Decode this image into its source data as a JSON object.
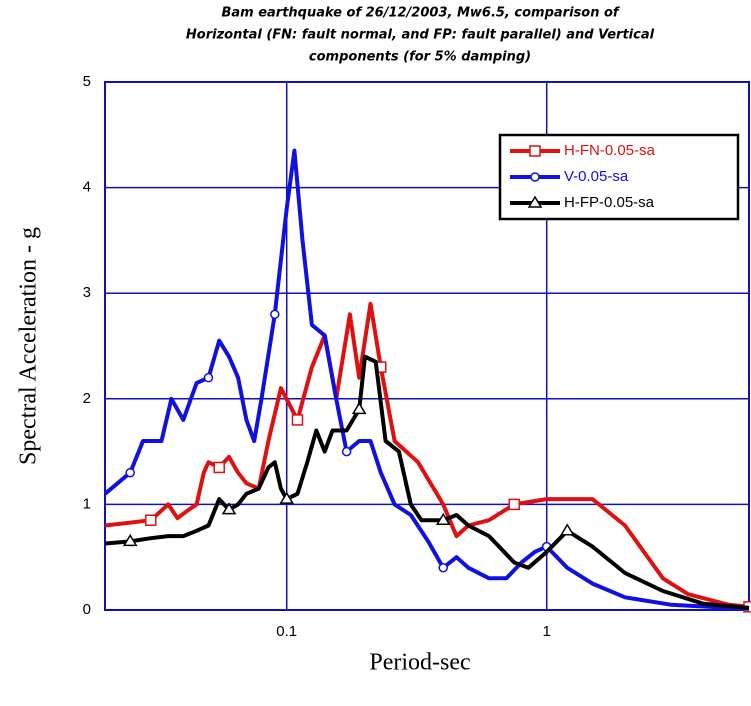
{
  "chart_data": {
    "type": "line",
    "title": [
      "Bam earthquake of 26/12/2003, Mw6.5, comparison of",
      "Horizontal (FN: fault normal, and FP: fault parallel) and Vertical",
      "components (for 5% damping)"
    ],
    "xlabel": "Period-sec",
    "ylabel": "Spectral Acceleration - g",
    "xscale": "log",
    "xlim": [
      0.02,
      6
    ],
    "ylim": [
      0,
      5
    ],
    "xticks": [
      0.1,
      1
    ],
    "yticks": [
      0,
      1,
      2,
      3,
      4,
      5
    ],
    "grid": true,
    "grid_color": "#1010c0",
    "legend": "upper right",
    "series": [
      {
        "name": "H-FN-0.05-sa",
        "color": "#e01010",
        "marker": "square",
        "x": [
          0.02,
          0.03,
          0.035,
          0.038,
          0.042,
          0.045,
          0.048,
          0.05,
          0.055,
          0.06,
          0.065,
          0.07,
          0.078,
          0.085,
          0.095,
          0.11,
          0.125,
          0.14,
          0.155,
          0.175,
          0.19,
          0.21,
          0.23,
          0.26,
          0.32,
          0.4,
          0.45,
          0.5,
          0.6,
          0.75,
          1.0,
          1.5,
          2.0,
          2.8,
          3.5,
          5,
          6
        ],
        "values": [
          0.8,
          0.85,
          1.0,
          0.87,
          0.95,
          1.0,
          1.3,
          1.4,
          1.35,
          1.45,
          1.3,
          1.2,
          1.15,
          1.6,
          2.1,
          1.8,
          2.3,
          2.6,
          2.0,
          2.8,
          2.2,
          2.9,
          2.3,
          1.6,
          1.4,
          1.0,
          0.7,
          0.8,
          0.85,
          1.0,
          1.05,
          1.05,
          0.8,
          0.3,
          0.15,
          0.05,
          0.03
        ]
      },
      {
        "name": "V-0.05-sa",
        "color": "#1010e0",
        "marker": "circle",
        "x": [
          0.02,
          0.025,
          0.028,
          0.03,
          0.033,
          0.036,
          0.04,
          0.045,
          0.05,
          0.055,
          0.06,
          0.065,
          0.07,
          0.075,
          0.08,
          0.09,
          0.1,
          0.107,
          0.115,
          0.125,
          0.14,
          0.155,
          0.17,
          0.19,
          0.21,
          0.23,
          0.26,
          0.3,
          0.35,
          0.4,
          0.45,
          0.5,
          0.6,
          0.7,
          0.8,
          0.9,
          1.0,
          1.2,
          1.5,
          2,
          3,
          6
        ],
        "values": [
          1.1,
          1.3,
          1.6,
          1.6,
          1.6,
          2.0,
          1.8,
          2.15,
          2.2,
          2.55,
          2.4,
          2.2,
          1.8,
          1.6,
          2.0,
          2.8,
          3.8,
          4.35,
          3.5,
          2.7,
          2.6,
          2.0,
          1.5,
          1.6,
          1.6,
          1.3,
          1.0,
          0.9,
          0.65,
          0.4,
          0.5,
          0.4,
          0.3,
          0.3,
          0.45,
          0.55,
          0.6,
          0.4,
          0.25,
          0.12,
          0.05,
          0.01
        ]
      },
      {
        "name": "H-FP-0.05-sa",
        "color": "#000000",
        "marker": "triangle",
        "x": [
          0.02,
          0.025,
          0.03,
          0.035,
          0.04,
          0.045,
          0.05,
          0.055,
          0.06,
          0.065,
          0.07,
          0.078,
          0.085,
          0.09,
          0.095,
          0.1,
          0.11,
          0.12,
          0.13,
          0.14,
          0.15,
          0.17,
          0.19,
          0.2,
          0.22,
          0.24,
          0.27,
          0.3,
          0.33,
          0.4,
          0.45,
          0.5,
          0.6,
          0.75,
          0.85,
          1.0,
          1.2,
          1.5,
          2,
          2.8,
          4,
          6
        ],
        "values": [
          0.63,
          0.65,
          0.68,
          0.7,
          0.7,
          0.75,
          0.8,
          1.05,
          0.95,
          1.0,
          1.1,
          1.15,
          1.35,
          1.4,
          1.15,
          1.05,
          1.1,
          1.4,
          1.7,
          1.5,
          1.7,
          1.7,
          1.9,
          2.4,
          2.35,
          1.6,
          1.5,
          1.0,
          0.85,
          0.85,
          0.9,
          0.8,
          0.7,
          0.45,
          0.4,
          0.55,
          0.75,
          0.6,
          0.35,
          0.18,
          0.06,
          0.02
        ]
      }
    ]
  }
}
